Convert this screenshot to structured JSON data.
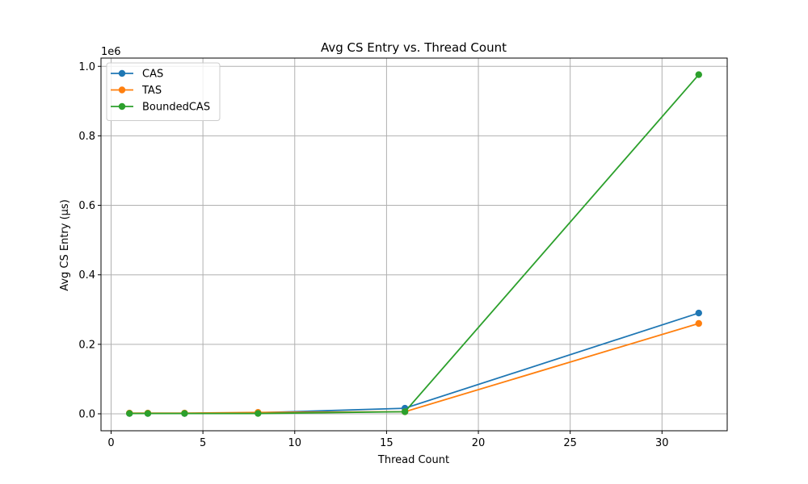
{
  "chart_data": {
    "type": "line",
    "title": "Avg CS Entry vs. Thread Count",
    "xlabel": "Thread Count",
    "ylabel": "Avg CS Entry (µs)",
    "y_offset_label": "1e6",
    "xlim": [
      -0.55,
      33.55
    ],
    "ylim": [
      -0.0488,
      1.0238
    ],
    "x_ticks": [
      0,
      5,
      10,
      15,
      20,
      25,
      30
    ],
    "x_tick_labels": [
      "0",
      "5",
      "10",
      "15",
      "20",
      "25",
      "30"
    ],
    "y_ticks": [
      0.0,
      0.2,
      0.4,
      0.6,
      0.8,
      1.0
    ],
    "y_tick_labels": [
      "0.0",
      "0.2",
      "0.4",
      "0.6",
      "0.8",
      "1.0"
    ],
    "grid": true,
    "legend_position": "top-left",
    "x": [
      1,
      2,
      4,
      8,
      16,
      32
    ],
    "series": [
      {
        "name": "CAS",
        "color": "#1f77b4",
        "values": [
          0.001,
          0.001,
          0.001,
          0.003,
          0.016,
          0.29
        ]
      },
      {
        "name": "TAS",
        "color": "#ff7f0e",
        "values": [
          0.002,
          0.002,
          0.002,
          0.004,
          0.006,
          0.26
        ]
      },
      {
        "name": "BoundedCAS",
        "color": "#2ca02c",
        "values": [
          0.001,
          0.001,
          0.001,
          0.001,
          0.006,
          0.976
        ]
      }
    ]
  }
}
